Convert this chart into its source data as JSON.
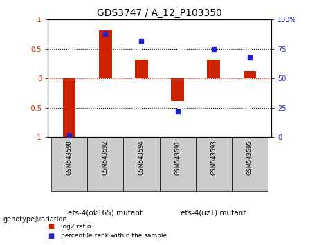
{
  "title": "GDS3747 / A_12_P103350",
  "samples": [
    "GSM543590",
    "GSM543592",
    "GSM543594",
    "GSM543591",
    "GSM543593",
    "GSM543595"
  ],
  "log2_ratio": [
    -1.0,
    0.82,
    0.32,
    -0.38,
    0.32,
    0.12
  ],
  "percentile_rank": [
    2,
    88,
    82,
    22,
    75,
    68
  ],
  "bar_color": "#cc2200",
  "dot_color": "#2222cc",
  "ylim_left": [
    -1,
    1
  ],
  "ylim_right": [
    0,
    100
  ],
  "yticks_left": [
    -1,
    -0.5,
    0,
    0.5,
    1
  ],
  "ytick_labels_left": [
    "-1",
    "-0.5",
    "0",
    "0.5",
    "1"
  ],
  "yticks_right": [
    0,
    25,
    50,
    75,
    100
  ],
  "ytick_labels_right": [
    "0",
    "25",
    "50",
    "75",
    "100%"
  ],
  "group1_label": "ets-4(ok165) mutant",
  "group2_label": "ets-4(uz1) mutant",
  "group1_indices": [
    0,
    1,
    2
  ],
  "group2_indices": [
    3,
    4,
    5
  ],
  "group1_color": "#99ee99",
  "group2_color": "#55dd55",
  "genotype_label": "genotype/variation",
  "legend_log2": "log2 ratio",
  "legend_pct": "percentile rank within the sample",
  "left_tick_color": "#cc2200",
  "right_tick_color": "#2222cc",
  "bar_width": 0.35,
  "plot_bg": "#ffffff",
  "tick_bg": "#cccccc"
}
